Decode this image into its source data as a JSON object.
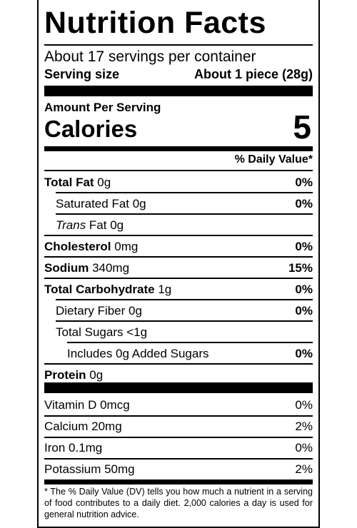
{
  "header": {
    "title": "Nutrition Facts"
  },
  "servings": {
    "per_container": "About 17 servings per container",
    "size_label": "Serving size",
    "size_value": "About 1 piece (28g)"
  },
  "calories": {
    "amount_per_serving": "Amount Per Serving",
    "label": "Calories",
    "value": "5"
  },
  "daily_value_header": "% Daily Value*",
  "nutrients": {
    "total_fat": {
      "name": "Total Fat",
      "amount": " 0g",
      "dv": "0%"
    },
    "saturated_fat": {
      "name": "Saturated Fat 0g",
      "dv": "0%"
    },
    "trans_fat": {
      "name": "Trans",
      "amount": " Fat 0g"
    },
    "cholesterol": {
      "name": "Cholesterol",
      "amount": " 0mg",
      "dv": "0%"
    },
    "sodium": {
      "name": "Sodium",
      "amount": " 340mg",
      "dv": "15%"
    },
    "total_carbohydrate": {
      "name": "Total Carbohydrate",
      "amount": " 1g",
      "dv": "0%"
    },
    "dietary_fiber": {
      "name": "Dietary Fiber 0g",
      "dv": "0%"
    },
    "total_sugars": {
      "name": "Total Sugars <1g"
    },
    "added_sugars": {
      "name": "Includes 0g Added Sugars",
      "dv": "0%"
    },
    "protein": {
      "name": "Protein",
      "amount": " 0g"
    }
  },
  "vitamins": {
    "vitamin_d": {
      "name": "Vitamin D 0mcg",
      "dv": "0%"
    },
    "calcium": {
      "name": "Calcium 20mg",
      "dv": "2%"
    },
    "iron": {
      "name": "Iron 0.1mg",
      "dv": "0%"
    },
    "potassium": {
      "name": "Potassium 50mg",
      "dv": "2%"
    }
  },
  "footnote": "* The % Daily Value (DV) tells you how much a nutrient in a serving of food contributes to a daily diet. 2,000 calories a day is used for general nutrition advice."
}
